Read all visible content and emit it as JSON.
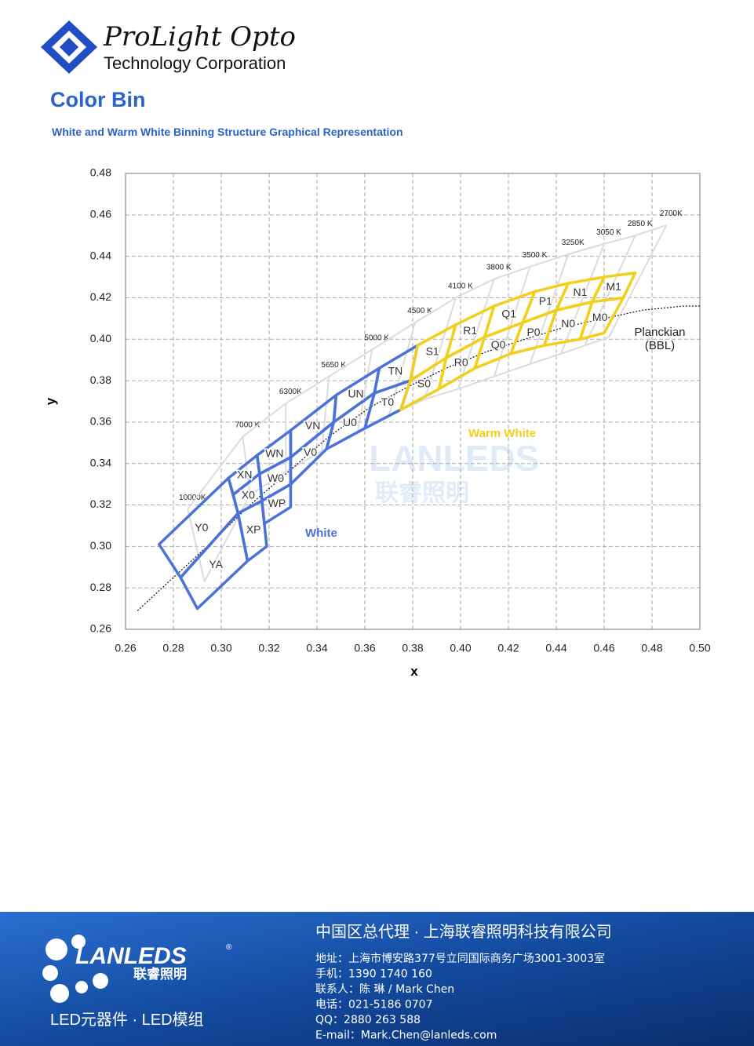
{
  "header": {
    "company": "ProLight Opto",
    "subtitle": "Technology Corporation"
  },
  "section_title": "Color Bin",
  "caption": "White and Warm White Binning Structure Graphical Representation",
  "chart_data": {
    "type": "bin",
    "xlabel": "x",
    "ylabel": "y",
    "xlim": [
      0.26,
      0.5
    ],
    "ylim": [
      0.26,
      0.48
    ],
    "xticks": [
      0.26,
      0.28,
      {
        "value": 0.3,
        "label": "0.30"
      },
      0.32,
      0.34,
      0.36,
      0.38,
      {
        "value": 0.4,
        "label": "0.40"
      },
      0.42,
      0.44,
      0.46,
      0.48,
      {
        "value": 0.5,
        "label": "0.50"
      }
    ],
    "yticks": [
      0.26,
      0.28,
      {
        "value": 0.3,
        "label": "0.30"
      },
      0.32,
      0.34,
      0.36,
      0.38,
      {
        "value": 0.4,
        "label": "0.40"
      },
      0.42,
      0.44,
      0.46,
      0.48
    ],
    "grid": true,
    "series": [
      {
        "name": "White",
        "color": "#4a72d9",
        "bins": [
          {
            "label": "Y0",
            "x": [
              0.274,
              0.303,
              0.307,
              0.283
            ],
            "y": [
              0.301,
              0.333,
              0.316,
              0.285
            ]
          },
          {
            "label": "YA",
            "x": [
              0.283,
              0.307,
              0.311,
              0.29
            ],
            "y": [
              0.285,
              0.316,
              0.293,
              0.27
            ]
          },
          {
            "label": "XN",
            "x": [
              0.303,
              0.315,
              0.316,
              0.305
            ],
            "y": [
              0.333,
              0.344,
              0.335,
              0.325
            ]
          },
          {
            "label": "X0",
            "x": [
              0.305,
              0.316,
              0.317,
              0.307
            ],
            "y": [
              0.325,
              0.335,
              0.322,
              0.316
            ]
          },
          {
            "label": "XP",
            "x": [
              0.307,
              0.317,
              0.319,
              0.311
            ],
            "y": [
              0.316,
              0.322,
              0.3,
              0.293
            ]
          },
          {
            "label": "WN",
            "x": [
              0.315,
              0.329,
              0.329,
              0.316
            ],
            "y": [
              0.344,
              0.356,
              0.343,
              0.335
            ]
          },
          {
            "label": "W0",
            "x": [
              0.316,
              0.329,
              0.329,
              0.317
            ],
            "y": [
              0.335,
              0.343,
              0.33,
              0.322
            ]
          },
          {
            "label": "WP",
            "x": [
              0.317,
              0.329,
              0.329,
              0.318
            ],
            "y": [
              0.322,
              0.33,
              0.319,
              0.311
            ]
          },
          {
            "label": "VN",
            "x": [
              0.329,
              0.348,
              0.347,
              0.329
            ],
            "y": [
              0.356,
              0.373,
              0.36,
              0.343
            ]
          },
          {
            "label": "V0",
            "x": [
              0.329,
              0.347,
              0.344,
              0.329
            ],
            "y": [
              0.343,
              0.36,
              0.347,
              0.33
            ]
          },
          {
            "label": "UN",
            "x": [
              0.348,
              0.366,
              0.364,
              0.347
            ],
            "y": [
              0.373,
              0.386,
              0.374,
              0.36
            ]
          },
          {
            "label": "U0",
            "x": [
              0.347,
              0.364,
              0.36,
              0.344
            ],
            "y": [
              0.36,
              0.374,
              0.357,
              0.347
            ]
          },
          {
            "label": "TN",
            "x": [
              0.366,
              0.382,
              0.379,
              0.364
            ],
            "y": [
              0.386,
              0.397,
              0.38,
              0.374
            ]
          },
          {
            "label": "T0",
            "x": [
              0.364,
              0.379,
              0.375,
              0.36
            ],
            "y": [
              0.374,
              0.38,
              0.366,
              0.357
            ]
          }
        ]
      },
      {
        "name": "Warm White",
        "color": "#f2cf1c",
        "bins": [
          {
            "label": "S1",
            "x": [
              0.382,
              0.398,
              0.394,
              0.379
            ],
            "y": [
              0.397,
              0.407,
              0.391,
              0.38
            ]
          },
          {
            "label": "S0",
            "x": [
              0.379,
              0.394,
              0.391,
              0.375
            ],
            "y": [
              0.38,
              0.391,
              0.376,
              0.366
            ]
          },
          {
            "label": "R1",
            "x": [
              0.398,
              0.414,
              0.41,
              0.394
            ],
            "y": [
              0.407,
              0.416,
              0.401,
              0.391
            ]
          },
          {
            "label": "R0",
            "x": [
              0.394,
              0.41,
              0.406,
              0.391
            ],
            "y": [
              0.391,
              0.401,
              0.386,
              0.376
            ]
          },
          {
            "label": "Q1",
            "x": [
              0.414,
              0.431,
              0.426,
              0.41
            ],
            "y": [
              0.416,
              0.423,
              0.408,
              0.401
            ]
          },
          {
            "label": "Q0",
            "x": [
              0.41,
              0.426,
              0.421,
              0.406
            ],
            "y": [
              0.401,
              0.408,
              0.393,
              0.386
            ]
          },
          {
            "label": "P1",
            "x": [
              0.431,
              0.445,
              0.44,
              0.426
            ],
            "y": [
              0.423,
              0.427,
              0.414,
              0.408
            ]
          },
          {
            "label": "P0",
            "x": [
              0.426,
              0.44,
              0.435,
              0.421
            ],
            "y": [
              0.408,
              0.414,
              0.397,
              0.393
            ]
          },
          {
            "label": "N1",
            "x": [
              0.445,
              0.46,
              0.455,
              0.44
            ],
            "y": [
              0.427,
              0.43,
              0.418,
              0.414
            ]
          },
          {
            "label": "N0",
            "x": [
              0.44,
              0.455,
              0.45,
              0.435
            ],
            "y": [
              0.414,
              0.418,
              0.4,
              0.397
            ]
          },
          {
            "label": "M1",
            "x": [
              0.46,
              0.473,
              0.468,
              0.455
            ],
            "y": [
              0.43,
              0.432,
              0.42,
              0.418
            ]
          },
          {
            "label": "M0",
            "x": [
              0.455,
              0.468,
              0.46,
              0.45
            ],
            "y": [
              0.418,
              0.42,
              0.403,
              0.4
            ]
          }
        ]
      }
    ],
    "cct": {
      "color": "#dcdcdc",
      "lines": [
        {
          "label": "2700K",
          "x": [
            0.486,
            0.462
          ],
          "y": [
            0.455,
            0.401
          ]
        },
        {
          "label": "2850 K",
          "x": [
            0.473,
            0.452
          ],
          "y": [
            0.45,
            0.397
          ]
        },
        {
          "label": "3050 K",
          "x": [
            0.46,
            0.442
          ],
          "y": [
            0.446,
            0.393
          ]
        },
        {
          "label": "3250K",
          "x": [
            0.445,
            0.429
          ],
          "y": [
            0.441,
            0.388
          ]
        },
        {
          "label": "3500 K",
          "x": [
            0.429,
            0.414
          ],
          "y": [
            0.435,
            0.382
          ]
        },
        {
          "label": "3800 K",
          "x": [
            0.414,
            0.399
          ],
          "y": [
            0.429,
            0.376
          ]
        },
        {
          "label": "4100 K",
          "x": [
            0.398,
            0.385
          ],
          "y": [
            0.42,
            0.371
          ]
        },
        {
          "label": "4500 K",
          "x": [
            0.381,
            0.37
          ],
          "y": [
            0.408,
            0.363
          ]
        },
        {
          "label": "5000 K",
          "x": [
            0.363,
            0.357
          ],
          "y": [
            0.395,
            0.355
          ]
        },
        {
          "label": "5650 K",
          "x": [
            0.345,
            0.342
          ],
          "y": [
            0.382,
            0.346
          ]
        },
        {
          "label": "6300K",
          "x": [
            0.327,
            0.327
          ],
          "y": [
            0.369,
            0.336
          ]
        },
        {
          "label": "7000 K",
          "x": [
            0.309,
            0.312
          ],
          "y": [
            0.353,
            0.325
          ]
        },
        {
          "label": "10000K",
          "x": [
            0.286,
            0.293
          ],
          "y": [
            0.318,
            0.283
          ]
        }
      ]
    },
    "planckian": {
      "label": [
        "Planckian",
        "(BBL)"
      ],
      "x": [
        0.265,
        0.28,
        0.296,
        0.312,
        0.329,
        0.345,
        0.362,
        0.378,
        0.394,
        0.411,
        0.427,
        0.444,
        0.46,
        0.476,
        0.493,
        0.5
      ],
      "y": [
        0.269,
        0.285,
        0.302,
        0.32,
        0.337,
        0.353,
        0.367,
        0.377,
        0.386,
        0.394,
        0.4,
        0.406,
        0.41,
        0.414,
        0.416,
        0.416
      ]
    }
  },
  "watermark": {
    "brand": "LANLEDS",
    "brand_cn": "联睿照明"
  },
  "footer": {
    "brand": "LANLEDS",
    "registered": "®",
    "brand_cn": "联睿照明",
    "products": "LED元器件 · LED模组",
    "company": "中国区总代理 · 上海联睿照明科技有限公司",
    "lines": [
      "地址：上海市博安路377号立同国际商务广场3001-3003室",
      "手机：1390 1740 160",
      "联系人：陈 琳 / Mark Chen",
      "电话：021-5186 0707",
      "QQ：2880 263 588",
      "E-mail：Mark.Chen@lanleds.com"
    ]
  }
}
